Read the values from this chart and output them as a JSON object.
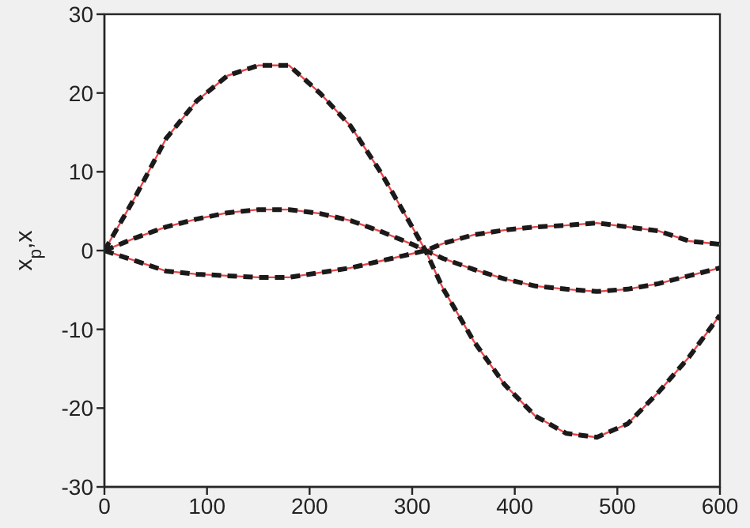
{
  "chart_data": {
    "type": "line",
    "ylabel": "x$_{p}$,x",
    "x": [
      0,
      30,
      60,
      90,
      120,
      150,
      180,
      210,
      240,
      270,
      300,
      313,
      330,
      360,
      390,
      420,
      450,
      480,
      510,
      540,
      570,
      600
    ],
    "xlim": [
      0,
      600
    ],
    "xticks": [
      0,
      100,
      200,
      300,
      400,
      500,
      600
    ],
    "ylim": [
      -30,
      30
    ],
    "yticks": [
      -30,
      -20,
      -10,
      0,
      10,
      20,
      30
    ],
    "marker": "none",
    "series": [
      {
        "color": "#e8464a",
        "line_style": "solid",
        "values": [
          0,
          6.8,
          14.2,
          19,
          22.2,
          23.5,
          23.5,
          20,
          15.8,
          9.8,
          3,
          0,
          -4.8,
          -11.5,
          -17,
          -21,
          -23.2,
          -23.7,
          -22,
          -18,
          -13.5,
          -8.2
        ]
      },
      {
        "color": "#e8464a",
        "line_style": "solid",
        "values": [
          0,
          1.6,
          3,
          4,
          4.8,
          5.2,
          5.2,
          4.7,
          3.8,
          2.4,
          0.8,
          0,
          -1,
          -2.4,
          -3.6,
          -4.5,
          -4.9,
          -5.2,
          -4.9,
          -4.2,
          -3.2,
          -2.2
        ]
      },
      {
        "color": "#e8464a",
        "line_style": "solid",
        "values": [
          0,
          -1.3,
          -2.6,
          -3,
          -3.2,
          -3.4,
          -3.4,
          -2.8,
          -2.2,
          -1.3,
          -0.4,
          0,
          0.9,
          2,
          2.6,
          3,
          3.2,
          3.5,
          3,
          2.5,
          1.2,
          0.8
        ]
      },
      {
        "color": "#1a1a1a",
        "line_style": "dashed",
        "values": [
          0,
          6.8,
          14.2,
          19,
          22.2,
          23.5,
          23.5,
          20,
          15.8,
          9.8,
          3,
          0,
          -4.8,
          -11.5,
          -17,
          -21,
          -23.2,
          -23.7,
          -22,
          -18,
          -13.5,
          -8.2
        ]
      },
      {
        "color": "#1a1a1a",
        "line_style": "dashed",
        "values": [
          0,
          1.6,
          3,
          4,
          4.8,
          5.2,
          5.2,
          4.7,
          3.8,
          2.4,
          0.8,
          0,
          -1,
          -2.4,
          -3.6,
          -4.5,
          -4.9,
          -5.2,
          -4.9,
          -4.2,
          -3.2,
          -2.2
        ]
      },
      {
        "color": "#1a1a1a",
        "line_style": "dashed",
        "values": [
          0,
          -1.3,
          -2.6,
          -3,
          -3.2,
          -3.4,
          -3.4,
          -2.8,
          -2.2,
          -1.3,
          -0.4,
          0,
          0.9,
          2,
          2.6,
          3,
          3.2,
          3.5,
          3,
          2.5,
          1.2,
          0.8
        ]
      }
    ]
  }
}
